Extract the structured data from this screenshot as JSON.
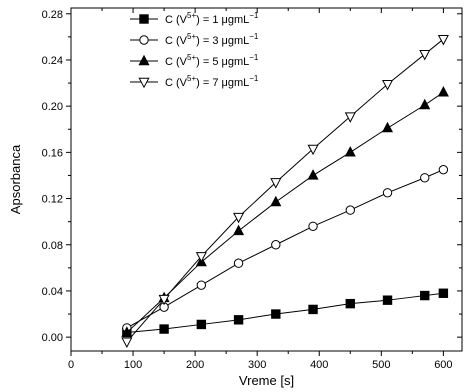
{
  "chart_data": {
    "type": "line",
    "title": "",
    "xlabel": "Vreme [s]",
    "ylabel": "Apsorbanca",
    "xlim": [
      0,
      630
    ],
    "ylim": [
      -0.012,
      0.285
    ],
    "xticks": [
      "0",
      "100",
      "200",
      "300",
      "400",
      "500",
      "600"
    ],
    "yticks": [
      "0.00",
      "0.04",
      "0.08",
      "0.12",
      "0.16",
      "0.20",
      "0.24",
      "0.28"
    ],
    "x": [
      90,
      150,
      210,
      270,
      330,
      390,
      450,
      510,
      570,
      600
    ],
    "legend_position": "top-left",
    "series": [
      {
        "name": "C (V5+) = 1 μgmL−1",
        "label_parts": {
          "pre": "C (V",
          "sup": "5+",
          "mid": ") = 1 ",
          "unit": "μgmL",
          "unit_sup": "−1"
        },
        "marker": "square-filled",
        "values": [
          0.004,
          0.007,
          0.011,
          0.015,
          0.02,
          0.024,
          0.029,
          0.032,
          0.036,
          0.038
        ]
      },
      {
        "name": "C (V5+) = 3 μgmL−1",
        "label_parts": {
          "pre": "C (V",
          "sup": "5+",
          "mid": ") = 3 ",
          "unit": "μgmL",
          "unit_sup": "−1"
        },
        "marker": "circle-open",
        "values": [
          0.008,
          0.026,
          0.045,
          0.064,
          0.08,
          0.096,
          0.11,
          0.125,
          0.138,
          0.145
        ]
      },
      {
        "name": "C (V5+) = 5 μgmL−1",
        "label_parts": {
          "pre": "C (V",
          "sup": "5+",
          "mid": ") = 5 ",
          "unit": "μgmL",
          "unit_sup": "−1"
        },
        "marker": "triangle-up-filled",
        "values": [
          0.004,
          0.034,
          0.065,
          0.092,
          0.117,
          0.14,
          0.16,
          0.181,
          0.201,
          0.212
        ]
      },
      {
        "name": "C (V5+) = 7 μgmL−1",
        "label_parts": {
          "pre": "C (V",
          "sup": "5+",
          "mid": ") = 7 ",
          "unit": "μgmL",
          "unit_sup": "−1"
        },
        "marker": "triangle-down-open",
        "values": [
          -0.004,
          0.033,
          0.07,
          0.104,
          0.134,
          0.163,
          0.191,
          0.219,
          0.245,
          0.258
        ]
      }
    ]
  }
}
